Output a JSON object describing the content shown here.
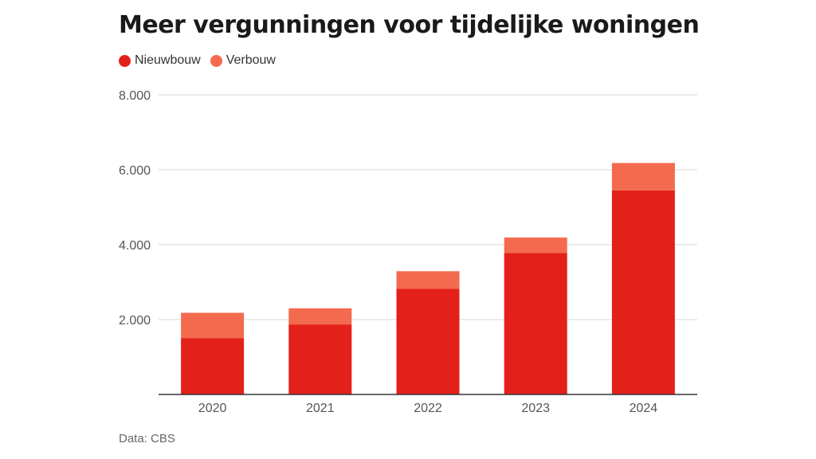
{
  "colors": {
    "nieuwbouw": "#e3211a",
    "verbouw": "#f46a4e",
    "grid": "#d9d9d9",
    "axis": "#333333",
    "tick_text": "#555555"
  },
  "legend": [
    {
      "label": "Nieuwbouw",
      "color": "#e3211a"
    },
    {
      "label": "Verbouw",
      "color": "#f46a4e"
    }
  ],
  "source": "Data: CBS",
  "chart_data": {
    "type": "bar",
    "stacked": true,
    "title": "Meer vergunningen voor tijdelijke woningen",
    "categories": [
      "2020",
      "2021",
      "2022",
      "2023",
      "2024"
    ],
    "series": [
      {
        "name": "Nieuwbouw",
        "values": [
          1500,
          1870,
          2820,
          3780,
          5450
        ]
      },
      {
        "name": "Verbouw",
        "values": [
          680,
          430,
          470,
          410,
          730
        ]
      }
    ],
    "ylim": [
      0,
      8000
    ],
    "yticks": [
      2000,
      4000,
      6000,
      8000
    ],
    "ytick_labels": [
      "2.000",
      "4.000",
      "6.000",
      "8.000"
    ],
    "xlabel": "",
    "ylabel": "",
    "grid": true,
    "legend_position": "top-left"
  }
}
